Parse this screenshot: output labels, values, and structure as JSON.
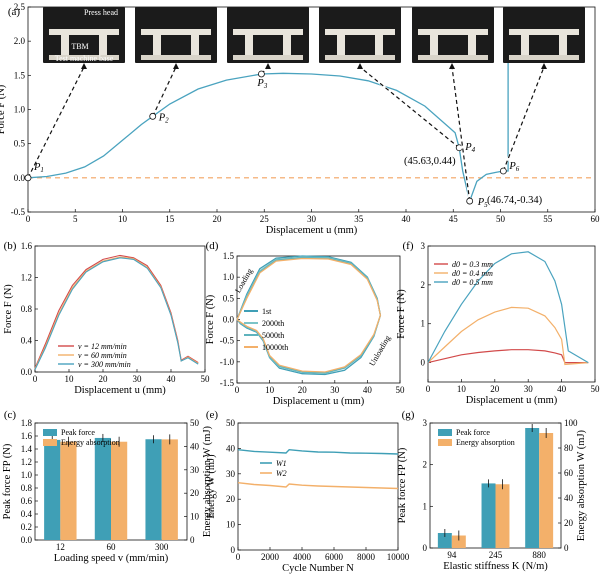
{
  "colors": {
    "main": "#4aa3bf",
    "dashed": "#f4a460",
    "teal": "#3f9fb6",
    "orange": "#f3b06a",
    "red": "#d24a4a",
    "blue": "#4aa3bf"
  },
  "chart_data": [
    {
      "id": "a",
      "type": "line",
      "panel_label": "(a)",
      "xlabel": "Displacement u (mm)",
      "ylabel": "Force F (N)",
      "xlim": [
        0,
        60
      ],
      "ylim": [
        -0.5,
        2.5
      ],
      "xticks": [
        "0",
        "5",
        "10",
        "15",
        "20",
        "25",
        "30",
        "35",
        "40",
        "45",
        "50",
        "55",
        "60"
      ],
      "yticks": [
        "-0.5",
        "0.0",
        "0.5",
        "1.0",
        "1.5",
        "2.0",
        "2.5"
      ],
      "series": [
        {
          "x": [
            0,
            2,
            4,
            6,
            8,
            10,
            12,
            13.2,
            15,
            18,
            21,
            24.7,
            27,
            30,
            33,
            36,
            39,
            42,
            45.2,
            45.63,
            46,
            46.5,
            46.74,
            47.5,
            48.5,
            49.5,
            50.3,
            50.8,
            50.8
          ],
          "y": [
            0,
            0.02,
            0.07,
            0.16,
            0.32,
            0.55,
            0.78,
            0.9,
            1.08,
            1.3,
            1.43,
            1.52,
            1.53,
            1.52,
            1.49,
            1.42,
            1.28,
            1.05,
            0.66,
            0.44,
            0.1,
            -0.2,
            -0.34,
            -0.05,
            0.05,
            0.08,
            0.1,
            0.1,
            2.5
          ]
        }
      ],
      "baseline_y": 0,
      "points": [
        {
          "label": "P1",
          "x": 0,
          "y": 0
        },
        {
          "label": "P2",
          "x": 13.2,
          "y": 0.9
        },
        {
          "label": "P3",
          "x": 24.7,
          "y": 1.52
        },
        {
          "label": "P4",
          "x": 45.63,
          "y": 0.44
        },
        {
          "label": "P5",
          "x": 46.74,
          "y": -0.34
        },
        {
          "label": "P6",
          "x": 50.3,
          "y": 0.1
        }
      ],
      "annotations": [
        "(45.63,0.44)",
        "(46.74,-0.34)"
      ],
      "photo_labels": [
        "Press head",
        "TBM",
        "Test machine base"
      ]
    },
    {
      "id": "b",
      "type": "line",
      "panel_label": "(b)",
      "xlabel": "Displacement u (mm)",
      "ylabel": "Force F (N)",
      "xlim": [
        0,
        50
      ],
      "ylim": [
        0,
        1.6
      ],
      "xticks": [
        "0",
        "10",
        "20",
        "30",
        "40",
        "50"
      ],
      "yticks": [
        "0.0",
        "0.4",
        "0.8",
        "1.2",
        "1.6"
      ],
      "series": [
        {
          "name": "v = 12 mm/min",
          "x": [
            0,
            3,
            7,
            11,
            15,
            20,
            25,
            29,
            33,
            37,
            40,
            42,
            43,
            45,
            48
          ],
          "y": [
            0.05,
            0.35,
            0.78,
            1.1,
            1.3,
            1.43,
            1.48,
            1.45,
            1.35,
            1.1,
            0.75,
            0.4,
            0.15,
            0.2,
            0.12
          ]
        },
        {
          "name": "v = 60 mm/min",
          "x": [
            0,
            3,
            7,
            11,
            15,
            20,
            25,
            29,
            33,
            37,
            40,
            42,
            43,
            45,
            48
          ],
          "y": [
            0.04,
            0.32,
            0.74,
            1.07,
            1.28,
            1.41,
            1.46,
            1.44,
            1.33,
            1.08,
            0.73,
            0.38,
            0.14,
            0.19,
            0.11
          ]
        },
        {
          "name": "v = 300 mm/min",
          "x": [
            0,
            3,
            7,
            11,
            15,
            20,
            25,
            29,
            33,
            37,
            40,
            42,
            43,
            45,
            48
          ],
          "y": [
            0.03,
            0.3,
            0.72,
            1.05,
            1.27,
            1.4,
            1.45,
            1.43,
            1.32,
            1.07,
            0.72,
            0.37,
            0.14,
            0.18,
            0.1
          ]
        }
      ]
    },
    {
      "id": "d",
      "type": "line",
      "panel_label": "(d)",
      "xlabel": "Displacement u (mm)",
      "ylabel": "Force F (N)",
      "xlim": [
        0,
        50
      ],
      "ylim": [
        -1.5,
        1.5
      ],
      "xticks": [
        "0",
        "10",
        "20",
        "30",
        "40",
        "50"
      ],
      "yticks": [
        "-1.5",
        "-1.0",
        "-0.5",
        "0.0",
        "0.5",
        "1.0",
        "1.5"
      ],
      "loading_label": "Loading",
      "unloading_label": "Unloading",
      "series": [
        {
          "name": "1st",
          "x": [
            0,
            3,
            7,
            12,
            20,
            28,
            35,
            40,
            43,
            44,
            42,
            38,
            33,
            27,
            20,
            13,
            10,
            8,
            6,
            3,
            1,
            0
          ],
          "y": [
            0,
            0.6,
            1.2,
            1.45,
            1.5,
            1.48,
            1.35,
            1.0,
            0.5,
            0.1,
            -0.4,
            -0.9,
            -1.2,
            -1.3,
            -1.28,
            -1.15,
            -0.9,
            -0.5,
            -0.3,
            -0.2,
            -0.1,
            0
          ]
        },
        {
          "name": "2000th",
          "x": [
            0,
            3,
            7,
            12,
            20,
            28,
            35,
            40,
            43,
            44,
            42,
            38,
            33,
            27,
            20,
            13,
            10,
            8,
            6,
            3,
            1,
            0
          ],
          "y": [
            0,
            0.55,
            1.15,
            1.42,
            1.47,
            1.46,
            1.33,
            0.98,
            0.48,
            0.1,
            -0.38,
            -0.86,
            -1.15,
            -1.27,
            -1.25,
            -1.12,
            -0.88,
            -0.48,
            -0.28,
            -0.18,
            -0.08,
            0
          ]
        },
        {
          "name": "5000th",
          "x": [
            0,
            3,
            7,
            12,
            20,
            28,
            35,
            40,
            43,
            44,
            42,
            38,
            33,
            27,
            20,
            13,
            10,
            8,
            6,
            3,
            1,
            0
          ],
          "y": [
            0,
            0.52,
            1.12,
            1.4,
            1.46,
            1.45,
            1.32,
            0.97,
            0.47,
            0.1,
            -0.37,
            -0.85,
            -1.14,
            -1.26,
            -1.24,
            -1.1,
            -0.86,
            -0.46,
            -0.27,
            -0.17,
            -0.07,
            0
          ]
        },
        {
          "name": "10000th",
          "x": [
            0,
            3,
            7,
            12,
            20,
            28,
            35,
            40,
            43,
            44,
            42,
            38,
            33,
            27,
            20,
            13,
            10,
            8,
            6,
            3,
            1,
            0
          ],
          "y": [
            0,
            0.5,
            1.1,
            1.38,
            1.44,
            1.43,
            1.3,
            0.95,
            0.45,
            0.1,
            -0.35,
            -0.83,
            -1.12,
            -1.24,
            -1.22,
            -1.08,
            -0.85,
            -0.45,
            -0.26,
            -0.16,
            -0.06,
            0
          ]
        }
      ]
    },
    {
      "id": "f",
      "type": "line",
      "panel_label": "(f)",
      "xlabel": "Displacement u (mm)",
      "ylabel": "Force F (N)",
      "xlim": [
        0,
        50
      ],
      "ylim": [
        -0.5,
        3.0
      ],
      "xticks": [
        "0",
        "10",
        "20",
        "30",
        "40",
        "50"
      ],
      "yticks": [
        "0",
        "1",
        "2",
        "3"
      ],
      "series": [
        {
          "name": "d0 = 0.3 mm",
          "x": [
            0,
            5,
            10,
            15,
            20,
            25,
            30,
            35,
            38,
            40,
            41,
            48
          ],
          "y": [
            0,
            0.1,
            0.2,
            0.26,
            0.3,
            0.33,
            0.33,
            0.3,
            0.25,
            0.2,
            0,
            0
          ]
        },
        {
          "name": "d0 = 0.4 mm",
          "x": [
            0,
            5,
            10,
            15,
            20,
            25,
            30,
            35,
            38,
            40,
            41,
            48
          ],
          "y": [
            0,
            0.4,
            0.8,
            1.1,
            1.3,
            1.42,
            1.4,
            1.2,
            0.9,
            0.6,
            -0.05,
            0
          ]
        },
        {
          "name": "d0 = 0.5 mm",
          "x": [
            0,
            5,
            10,
            15,
            20,
            25,
            30,
            35,
            38,
            40,
            42,
            48
          ],
          "y": [
            0,
            0.8,
            1.5,
            2.1,
            2.55,
            2.8,
            2.85,
            2.6,
            2.1,
            1.5,
            0.3,
            0
          ]
        }
      ]
    },
    {
      "id": "c",
      "type": "bar",
      "panel_label": "(c)",
      "xlabel": "Loading speed v (mm/min)",
      "ylabel": "Peak force FP (N)",
      "y2label": "Energy absorption W (mJ)",
      "categories": [
        "12",
        "60",
        "300"
      ],
      "ylim": [
        0,
        1.8
      ],
      "yticks": [
        "0.0",
        "0.2",
        "0.4",
        "0.6",
        "0.8",
        "1.0",
        "1.2",
        "1.4",
        "1.6",
        "1.8"
      ],
      "y2lim": [
        0,
        50
      ],
      "y2ticks": [
        "0",
        "10",
        "20",
        "30",
        "40",
        "50"
      ],
      "series": [
        {
          "name": "Peak force",
          "values": [
            1.54,
            1.57,
            1.55
          ]
        },
        {
          "name": "Energy absorption",
          "values": [
            42,
            42,
            43
          ]
        }
      ]
    },
    {
      "id": "e",
      "type": "line",
      "panel_label": "(e)",
      "xlabel": "Cycle Number N",
      "ylabel": "Energy W (mJ)",
      "xlim": [
        0,
        10000
      ],
      "ylim": [
        0,
        50
      ],
      "xticks": [
        "0",
        "2000",
        "4000",
        "6000",
        "8000",
        "10000"
      ],
      "yticks": [
        "0",
        "10",
        "20",
        "30",
        "40",
        "50"
      ],
      "series": [
        {
          "name": "W1",
          "x": [
            0,
            1000,
            2000,
            3000,
            3200,
            4000,
            5000,
            6000,
            7000,
            8000,
            9000,
            10000
          ],
          "y": [
            39.5,
            38.8,
            38.5,
            38.2,
            39.5,
            39,
            38.6,
            38.5,
            38.2,
            38.1,
            38,
            37.8
          ]
        },
        {
          "name": "W2",
          "x": [
            0,
            1000,
            2000,
            3000,
            3200,
            4000,
            5000,
            6000,
            7000,
            8000,
            9000,
            10000
          ],
          "y": [
            26.5,
            25.8,
            25.4,
            24.8,
            26,
            25.5,
            25.2,
            25,
            24.8,
            24.6,
            24.4,
            24.2
          ]
        }
      ]
    },
    {
      "id": "g",
      "type": "bar",
      "panel_label": "(g)",
      "xlabel": "Elastic stiffness K (N/m)",
      "ylabel": "Peak force FP (N)",
      "y2label": "Energy absorption W (mJ)",
      "categories": [
        "94",
        "245",
        "880"
      ],
      "ylim": [
        0,
        3
      ],
      "yticks": [
        "0",
        "1",
        "2",
        "3"
      ],
      "y2lim": [
        0,
        100
      ],
      "y2ticks": [
        "0",
        "20",
        "40",
        "60",
        "80",
        "100"
      ],
      "series": [
        {
          "name": "Peak force",
          "values": [
            0.36,
            1.55,
            2.88
          ]
        },
        {
          "name": "Energy absorption",
          "values": [
            10,
            51,
            92
          ]
        }
      ]
    }
  ]
}
